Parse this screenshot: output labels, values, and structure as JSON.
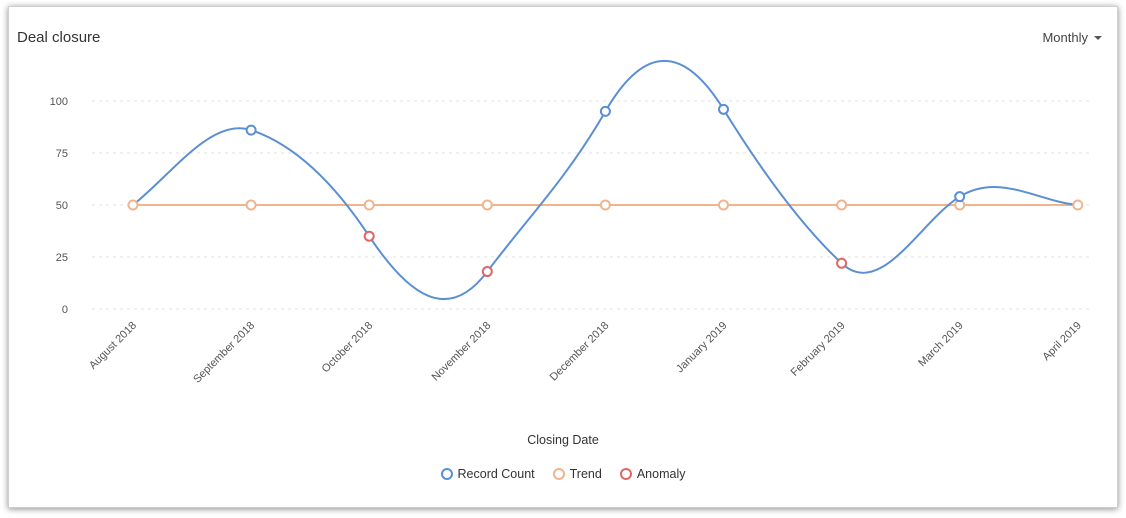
{
  "header": {
    "title": "Deal closure",
    "period": "Monthly"
  },
  "chart_data": {
    "type": "line",
    "xlabel": "Closing Date",
    "ylabel": "",
    "ylim": [
      0,
      100
    ],
    "yticks": [
      0,
      25,
      50,
      75,
      100
    ],
    "grid": true,
    "legend_position": "bottom",
    "categories": [
      "August 2018",
      "September 2018",
      "October 2018",
      "November 2018",
      "December 2018",
      "January 2019",
      "February 2019",
      "March 2019",
      "April 2019"
    ],
    "series": [
      {
        "name": "Record Count",
        "color": "#5b8fd4",
        "values": [
          50,
          86,
          35,
          18,
          95,
          96,
          22,
          54,
          50
        ]
      },
      {
        "name": "Trend",
        "color": "#f0b48e",
        "values": [
          50,
          50,
          50,
          50,
          50,
          50,
          50,
          50,
          50
        ]
      }
    ],
    "anomaly": {
      "name": "Anomaly",
      "color": "#e06666",
      "indices": [
        2,
        3,
        6
      ]
    }
  }
}
